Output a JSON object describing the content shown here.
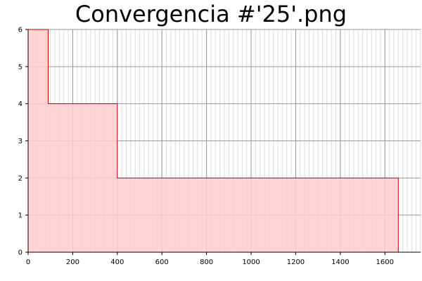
{
  "title": "Convergencia #'25'.png",
  "chart_data": {
    "type": "area",
    "title": "Convergencia #'25'.png",
    "xlabel": "",
    "ylabel": "",
    "xlim": [
      0,
      1760
    ],
    "ylim": [
      0,
      6
    ],
    "x_ticks": [
      0,
      200,
      400,
      600,
      800,
      1000,
      1200,
      1400,
      1600
    ],
    "y_ticks": [
      0,
      1,
      2,
      3,
      4,
      5,
      6
    ],
    "grid": true,
    "step": true,
    "series": [
      {
        "x": [
          0,
          90,
          90,
          400,
          400,
          1660,
          1660
        ],
        "y": [
          6,
          6,
          4,
          4,
          2,
          2,
          0
        ],
        "line_color": "#cc0000",
        "fill_color": "#ffcccc"
      }
    ]
  }
}
